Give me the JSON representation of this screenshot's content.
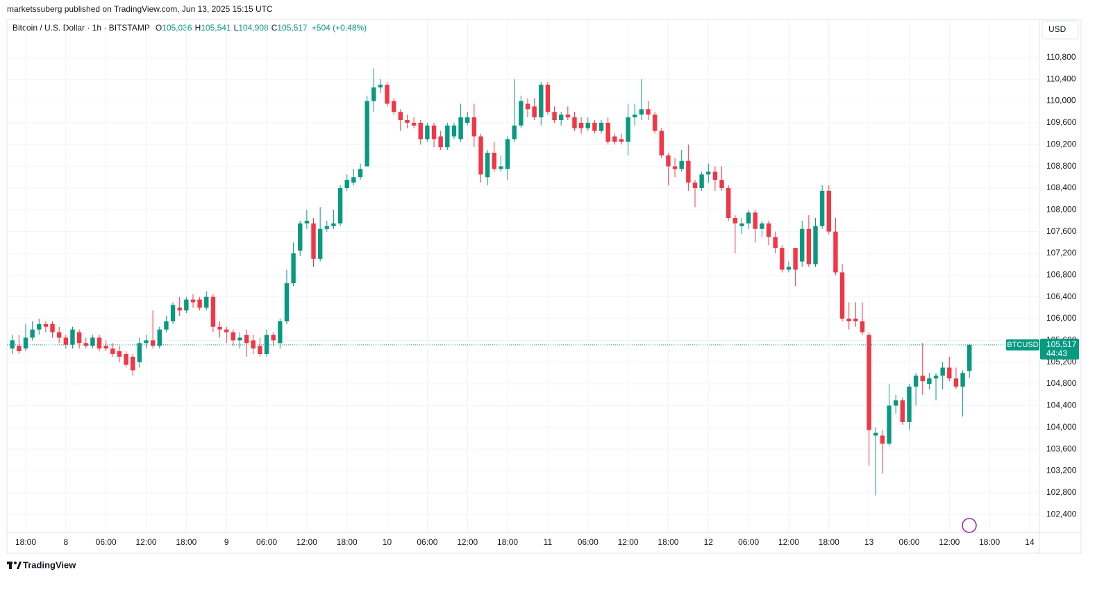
{
  "chart_data": {
    "type": "candlestick",
    "attribution": "marketssuberg published on TradingView.com, Jun 13, 2025 15:15 UTC",
    "symbol": "Bitcoin / U.S. Dollar · 1h · BITSTAMP",
    "legend_items": [
      {
        "key": "O",
        "value": "105,036"
      },
      {
        "key": "H",
        "value": "105,541"
      },
      {
        "key": "L",
        "value": "104,908"
      },
      {
        "key": "C",
        "value": "105,517"
      }
    ],
    "change": "+504 (+0.48%)",
    "currency": "USD",
    "price_tag": {
      "symbol": "BTCUSD",
      "price": "105,517",
      "countdown": "44:43"
    },
    "brand": "TradingView",
    "up_color": "#089981",
    "down_color": "#f23645",
    "grid": true,
    "categories": [
      null,
      null,
      "18:00",
      null,
      null,
      null,
      null,
      null,
      "8",
      null,
      null,
      null,
      null,
      null,
      "06:00",
      null,
      null,
      null,
      null,
      null,
      "12:00",
      null,
      null,
      null,
      null,
      null,
      "18:00",
      null,
      null,
      null,
      null,
      null,
      "9",
      null,
      null,
      null,
      null,
      null,
      "06:00",
      null,
      null,
      null,
      null,
      null,
      "12:00",
      null,
      null,
      null,
      null,
      null,
      "18:00",
      null,
      null,
      null,
      null,
      null,
      "10",
      null,
      null,
      null,
      null,
      null,
      "06:00",
      null,
      null,
      null,
      null,
      null,
      "12:00",
      null,
      null,
      null,
      null,
      null,
      "18:00",
      null,
      null,
      null,
      null,
      null,
      "11",
      null,
      null,
      null,
      null,
      null,
      "06:00",
      null,
      null,
      null,
      null,
      null,
      "12:00",
      null,
      null,
      null,
      null,
      null,
      "18:00",
      null,
      null,
      null,
      null,
      null,
      "12",
      null,
      null,
      null,
      null,
      null,
      "06:00",
      null,
      null,
      null,
      null,
      null,
      "12:00",
      null,
      null,
      null,
      null,
      null,
      "18:00",
      null,
      null,
      null,
      null,
      null,
      "13",
      null,
      null,
      null,
      null,
      null,
      "06:00",
      null,
      null,
      null,
      null,
      null,
      "12:00",
      null,
      null,
      null,
      null,
      null,
      "18:00",
      null,
      null,
      null,
      null,
      null,
      "14"
    ],
    "open": [
      105450,
      105500,
      105450,
      105650,
      105800,
      105900,
      105900,
      105750,
      105650,
      105520,
      105750,
      105550,
      105500,
      105650,
      105500,
      105450,
      105400,
      105350,
      105300,
      105200,
      105550,
      105600,
      105500,
      105800,
      105950,
      106200,
      106150,
      106350,
      106350,
      106200,
      106400,
      105850,
      105800,
      105750,
      105600,
      105700,
      105600,
      105500,
      105350,
      105700,
      105550,
      105950,
      106650,
      107250,
      107750,
      107750,
      107100,
      107650,
      107700,
      107750,
      108400,
      108500,
      108600,
      108800,
      110000,
      110250,
      110300,
      110000,
      109800,
      109650,
      109600,
      109600,
      109300,
      109550,
      109350,
      109150,
      109350,
      109300,
      109600,
      109700,
      109350,
      108600,
      109050,
      108750,
      108750,
      109300,
      109550,
      109950,
      109900,
      109700,
      110300,
      109800,
      109650,
      109750,
      109700,
      109600,
      109500,
      109600,
      109450,
      109600,
      109350,
      109300,
      109250,
      109700,
      109750,
      109850,
      109750,
      109450,
      109000,
      108800,
      108750,
      108900,
      108500,
      108400,
      108650,
      108700,
      108550,
      108400,
      107850,
      107700,
      107750,
      107950,
      107650,
      107750,
      107500,
      107300,
      106900,
      107300,
      107050,
      107650,
      107000,
      107700,
      108350,
      107600,
      106850,
      106000,
      106000,
      105950,
      105700,
      103850,
      103850,
      103700,
      104400,
      104500,
      104100,
      104750,
      104950,
      104800,
      104900,
      104950,
      105100,
      104900,
      104750,
      105036,
      null,
      null,
      null,
      null,
      null,
      null,
      null,
      null,
      null
    ],
    "high": [
      105700,
      105700,
      105900,
      105950,
      106000,
      105950,
      105950,
      105850,
      105700,
      105850,
      105800,
      105650,
      105700,
      105700,
      105600,
      105550,
      105500,
      105400,
      105350,
      105650,
      105700,
      106150,
      105850,
      106050,
      106300,
      106400,
      106400,
      106450,
      106400,
      106500,
      106450,
      105950,
      105850,
      105800,
      105750,
      105800,
      105700,
      105650,
      105800,
      105750,
      106000,
      106900,
      107400,
      107800,
      108000,
      107850,
      108050,
      107800,
      108000,
      108450,
      108650,
      108750,
      108850,
      110100,
      110600,
      110400,
      110350,
      110050,
      109850,
      109750,
      109700,
      109650,
      109600,
      109600,
      109450,
      109600,
      109600,
      109950,
      109800,
      109950,
      109400,
      109100,
      109250,
      109000,
      109350,
      110400,
      110100,
      110050,
      110050,
      110350,
      110350,
      109900,
      109800,
      109900,
      109800,
      109700,
      109700,
      109650,
      109650,
      109700,
      109400,
      109400,
      109950,
      109950,
      110400,
      110000,
      109800,
      109500,
      109050,
      108950,
      109100,
      109200,
      108550,
      108700,
      108850,
      108800,
      108800,
      108450,
      107900,
      107850,
      108000,
      108000,
      107800,
      107800,
      107600,
      107350,
      107050,
      107300,
      107800,
      107900,
      107850,
      108450,
      108450,
      107850,
      107000,
      106300,
      106300,
      106300,
      105750,
      104000,
      103950,
      104800,
      104600,
      104550,
      104800,
      105000,
      105550,
      105000,
      105000,
      105200,
      105300,
      105100,
      105050,
      105541,
      null,
      null,
      null,
      null,
      null,
      null,
      null,
      null,
      null
    ],
    "low": [
      105350,
      105350,
      105400,
      105600,
      105700,
      105750,
      105650,
      105550,
      105450,
      105450,
      105450,
      105450,
      105450,
      105400,
      105400,
      105300,
      105200,
      105100,
      104950,
      105100,
      105450,
      105450,
      105450,
      105750,
      105900,
      106050,
      106100,
      106200,
      106150,
      106150,
      105750,
      105650,
      105550,
      105500,
      105450,
      105300,
      105350,
      105300,
      105300,
      105500,
      105450,
      105900,
      106600,
      107150,
      107650,
      106950,
      107050,
      107600,
      107650,
      107700,
      108350,
      108450,
      108550,
      108800,
      109800,
      110150,
      109900,
      109750,
      109450,
      109500,
      109500,
      109200,
      109250,
      109150,
      109100,
      109100,
      109300,
      109250,
      109550,
      109150,
      108500,
      108450,
      108700,
      108700,
      108550,
      109250,
      109500,
      109700,
      109650,
      109550,
      109750,
      109600,
      109550,
      109650,
      109450,
      109400,
      109450,
      109400,
      109400,
      109200,
      109200,
      109200,
      109000,
      109550,
      109650,
      109650,
      109400,
      108950,
      108450,
      108600,
      108700,
      108350,
      108050,
      108350,
      108500,
      108350,
      108350,
      107800,
      107200,
      107550,
      107650,
      107400,
      107500,
      107350,
      107200,
      106850,
      106850,
      106600,
      106950,
      106950,
      106950,
      107650,
      107550,
      106800,
      105950,
      105800,
      105850,
      105700,
      103300,
      102750,
      103150,
      103650,
      104250,
      104050,
      103950,
      104400,
      104600,
      104700,
      104500,
      104700,
      104850,
      104700,
      104200,
      104908,
      null,
      null,
      null,
      null,
      null,
      null,
      null,
      null,
      null
    ],
    "close": [
      105600,
      105400,
      105650,
      105800,
      105900,
      105850,
      105750,
      105650,
      105520,
      105800,
      105550,
      105500,
      105650,
      105450,
      105450,
      105350,
      105300,
      105150,
      105050,
      105550,
      105600,
      105500,
      105800,
      105950,
      106250,
      106150,
      106350,
      106300,
      106200,
      106400,
      105850,
      105800,
      105750,
      105600,
      105650,
      105550,
      105450,
      105350,
      105700,
      105600,
      105950,
      106650,
      107200,
      107750,
      107800,
      107100,
      107650,
      107700,
      107750,
      108400,
      108550,
      108600,
      108750,
      110000,
      110250,
      110300,
      109950,
      109800,
      109650,
      109600,
      109550,
      109300,
      109550,
      109300,
      109150,
      109550,
      109550,
      109700,
      109700,
      109350,
      108650,
      109050,
      108750,
      108800,
      109300,
      109550,
      110000,
      109850,
      109700,
      110300,
      109800,
      109650,
      109750,
      109700,
      109500,
      109500,
      109600,
      109450,
      109600,
      109250,
      109250,
      109250,
      109700,
      109750,
      109850,
      109750,
      109450,
      109000,
      108800,
      108750,
      108900,
      108500,
      108400,
      108650,
      108700,
      108550,
      108400,
      107850,
      107750,
      107750,
      107950,
      107650,
      107750,
      107500,
      107300,
      106900,
      106950,
      106900,
      107650,
      107000,
      107700,
      108350,
      107600,
      106850,
      106000,
      105950,
      105950,
      105750,
      103950,
      103900,
      103700,
      104400,
      104500,
      104100,
      104750,
      104950,
      104850,
      104900,
      104950,
      105100,
      104900,
      104750,
      105000,
      105517,
      null,
      null,
      null,
      null,
      null,
      null,
      null,
      null,
      null
    ],
    "ylim": [
      102070,
      111500
    ],
    "yticks": [
      {
        "value": 102400,
        "label": "102,400"
      },
      {
        "value": 102800,
        "label": "102,800"
      },
      {
        "value": 103200,
        "label": "103,200"
      },
      {
        "value": 103600,
        "label": "103,600"
      },
      {
        "value": 104000,
        "label": "104,000"
      },
      {
        "value": 104400,
        "label": "104,400"
      },
      {
        "value": 104800,
        "label": "104,800"
      },
      {
        "value": 105200,
        "label": "105,200"
      },
      {
        "value": 105600,
        "label": "105,600"
      },
      {
        "value": 106000,
        "label": "106,000"
      },
      {
        "value": 106400,
        "label": "106,400"
      },
      {
        "value": 106800,
        "label": "106,800"
      },
      {
        "value": 107200,
        "label": "107,200"
      },
      {
        "value": 107600,
        "label": "107,600"
      },
      {
        "value": 108000,
        "label": "108,000"
      },
      {
        "value": 108400,
        "label": "108,400"
      },
      {
        "value": 108800,
        "label": "108,800"
      },
      {
        "value": 109200,
        "label": "109,200"
      },
      {
        "value": 109600,
        "label": "109,600"
      },
      {
        "value": 110000,
        "label": "110,000"
      },
      {
        "value": 110400,
        "label": "110,400"
      },
      {
        "value": 110800,
        "label": "110,800"
      }
    ]
  }
}
